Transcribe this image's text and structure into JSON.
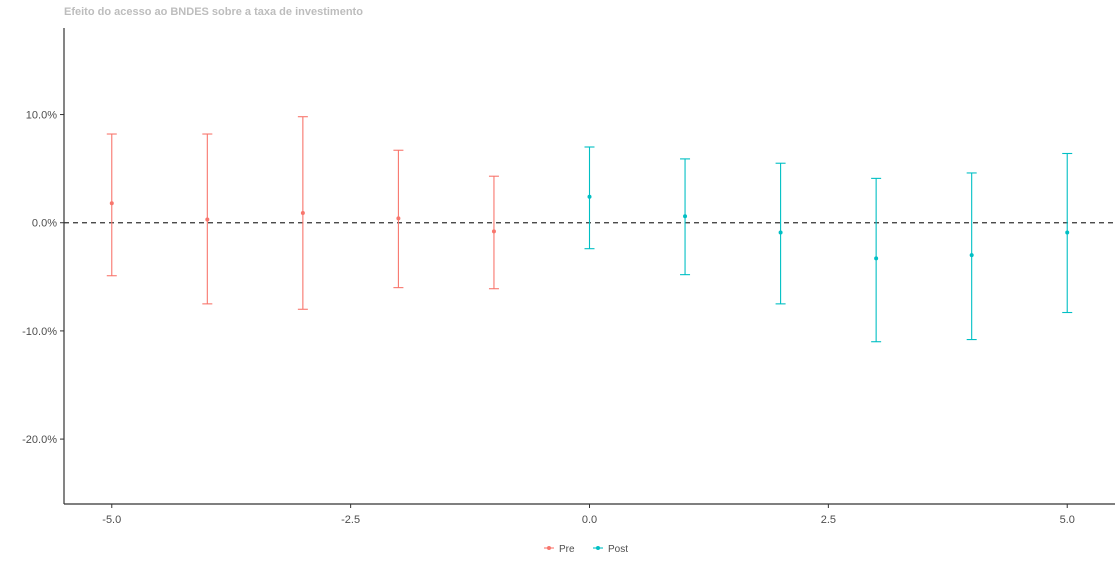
{
  "chart_data": {
    "type": "scatter",
    "title": "Efeito do acesso ao BNDES sobre a taxa de investimento",
    "xlabel": "",
    "ylabel": "",
    "xlim": [
      -5.5,
      5.5
    ],
    "ylim": [
      -26,
      18
    ],
    "x_ticks": [
      -5.0,
      -2.5,
      0.0,
      2.5,
      5.0
    ],
    "x_tick_labels": [
      "-5.0",
      "-2.5",
      "0.0",
      "2.5",
      "5.0"
    ],
    "y_ticks": [
      10,
      0,
      -10,
      -20
    ],
    "y_tick_labels": [
      "10.0%",
      "0.0%",
      "-10.0%",
      "-20.0%"
    ],
    "reference_line": {
      "y": 0,
      "style": "dashed",
      "color": "#333333"
    },
    "grid": false,
    "legend_position": "bottom",
    "series": [
      {
        "name": "Pre",
        "color": "#F8766D",
        "points": [
          {
            "x": -5,
            "y": 1.8,
            "lo": -4.9,
            "hi": 8.2
          },
          {
            "x": -4,
            "y": 0.3,
            "lo": -7.5,
            "hi": 8.2
          },
          {
            "x": -3,
            "y": 0.9,
            "lo": -8.0,
            "hi": 9.8
          },
          {
            "x": -2,
            "y": 0.4,
            "lo": -6.0,
            "hi": 6.7
          },
          {
            "x": -1,
            "y": -0.8,
            "lo": -6.1,
            "hi": 4.3
          }
        ]
      },
      {
        "name": "Post",
        "color": "#00BFC4",
        "points": [
          {
            "x": 0,
            "y": 2.4,
            "lo": -2.4,
            "hi": 7.0
          },
          {
            "x": 1,
            "y": 0.6,
            "lo": -4.8,
            "hi": 5.9
          },
          {
            "x": 2,
            "y": -0.9,
            "lo": -7.5,
            "hi": 5.5
          },
          {
            "x": 3,
            "y": -3.3,
            "lo": -11.0,
            "hi": 4.1
          },
          {
            "x": 4,
            "y": -3.0,
            "lo": -10.8,
            "hi": 4.6
          },
          {
            "x": 5,
            "y": -0.9,
            "lo": -8.3,
            "hi": 6.4
          }
        ]
      }
    ]
  }
}
